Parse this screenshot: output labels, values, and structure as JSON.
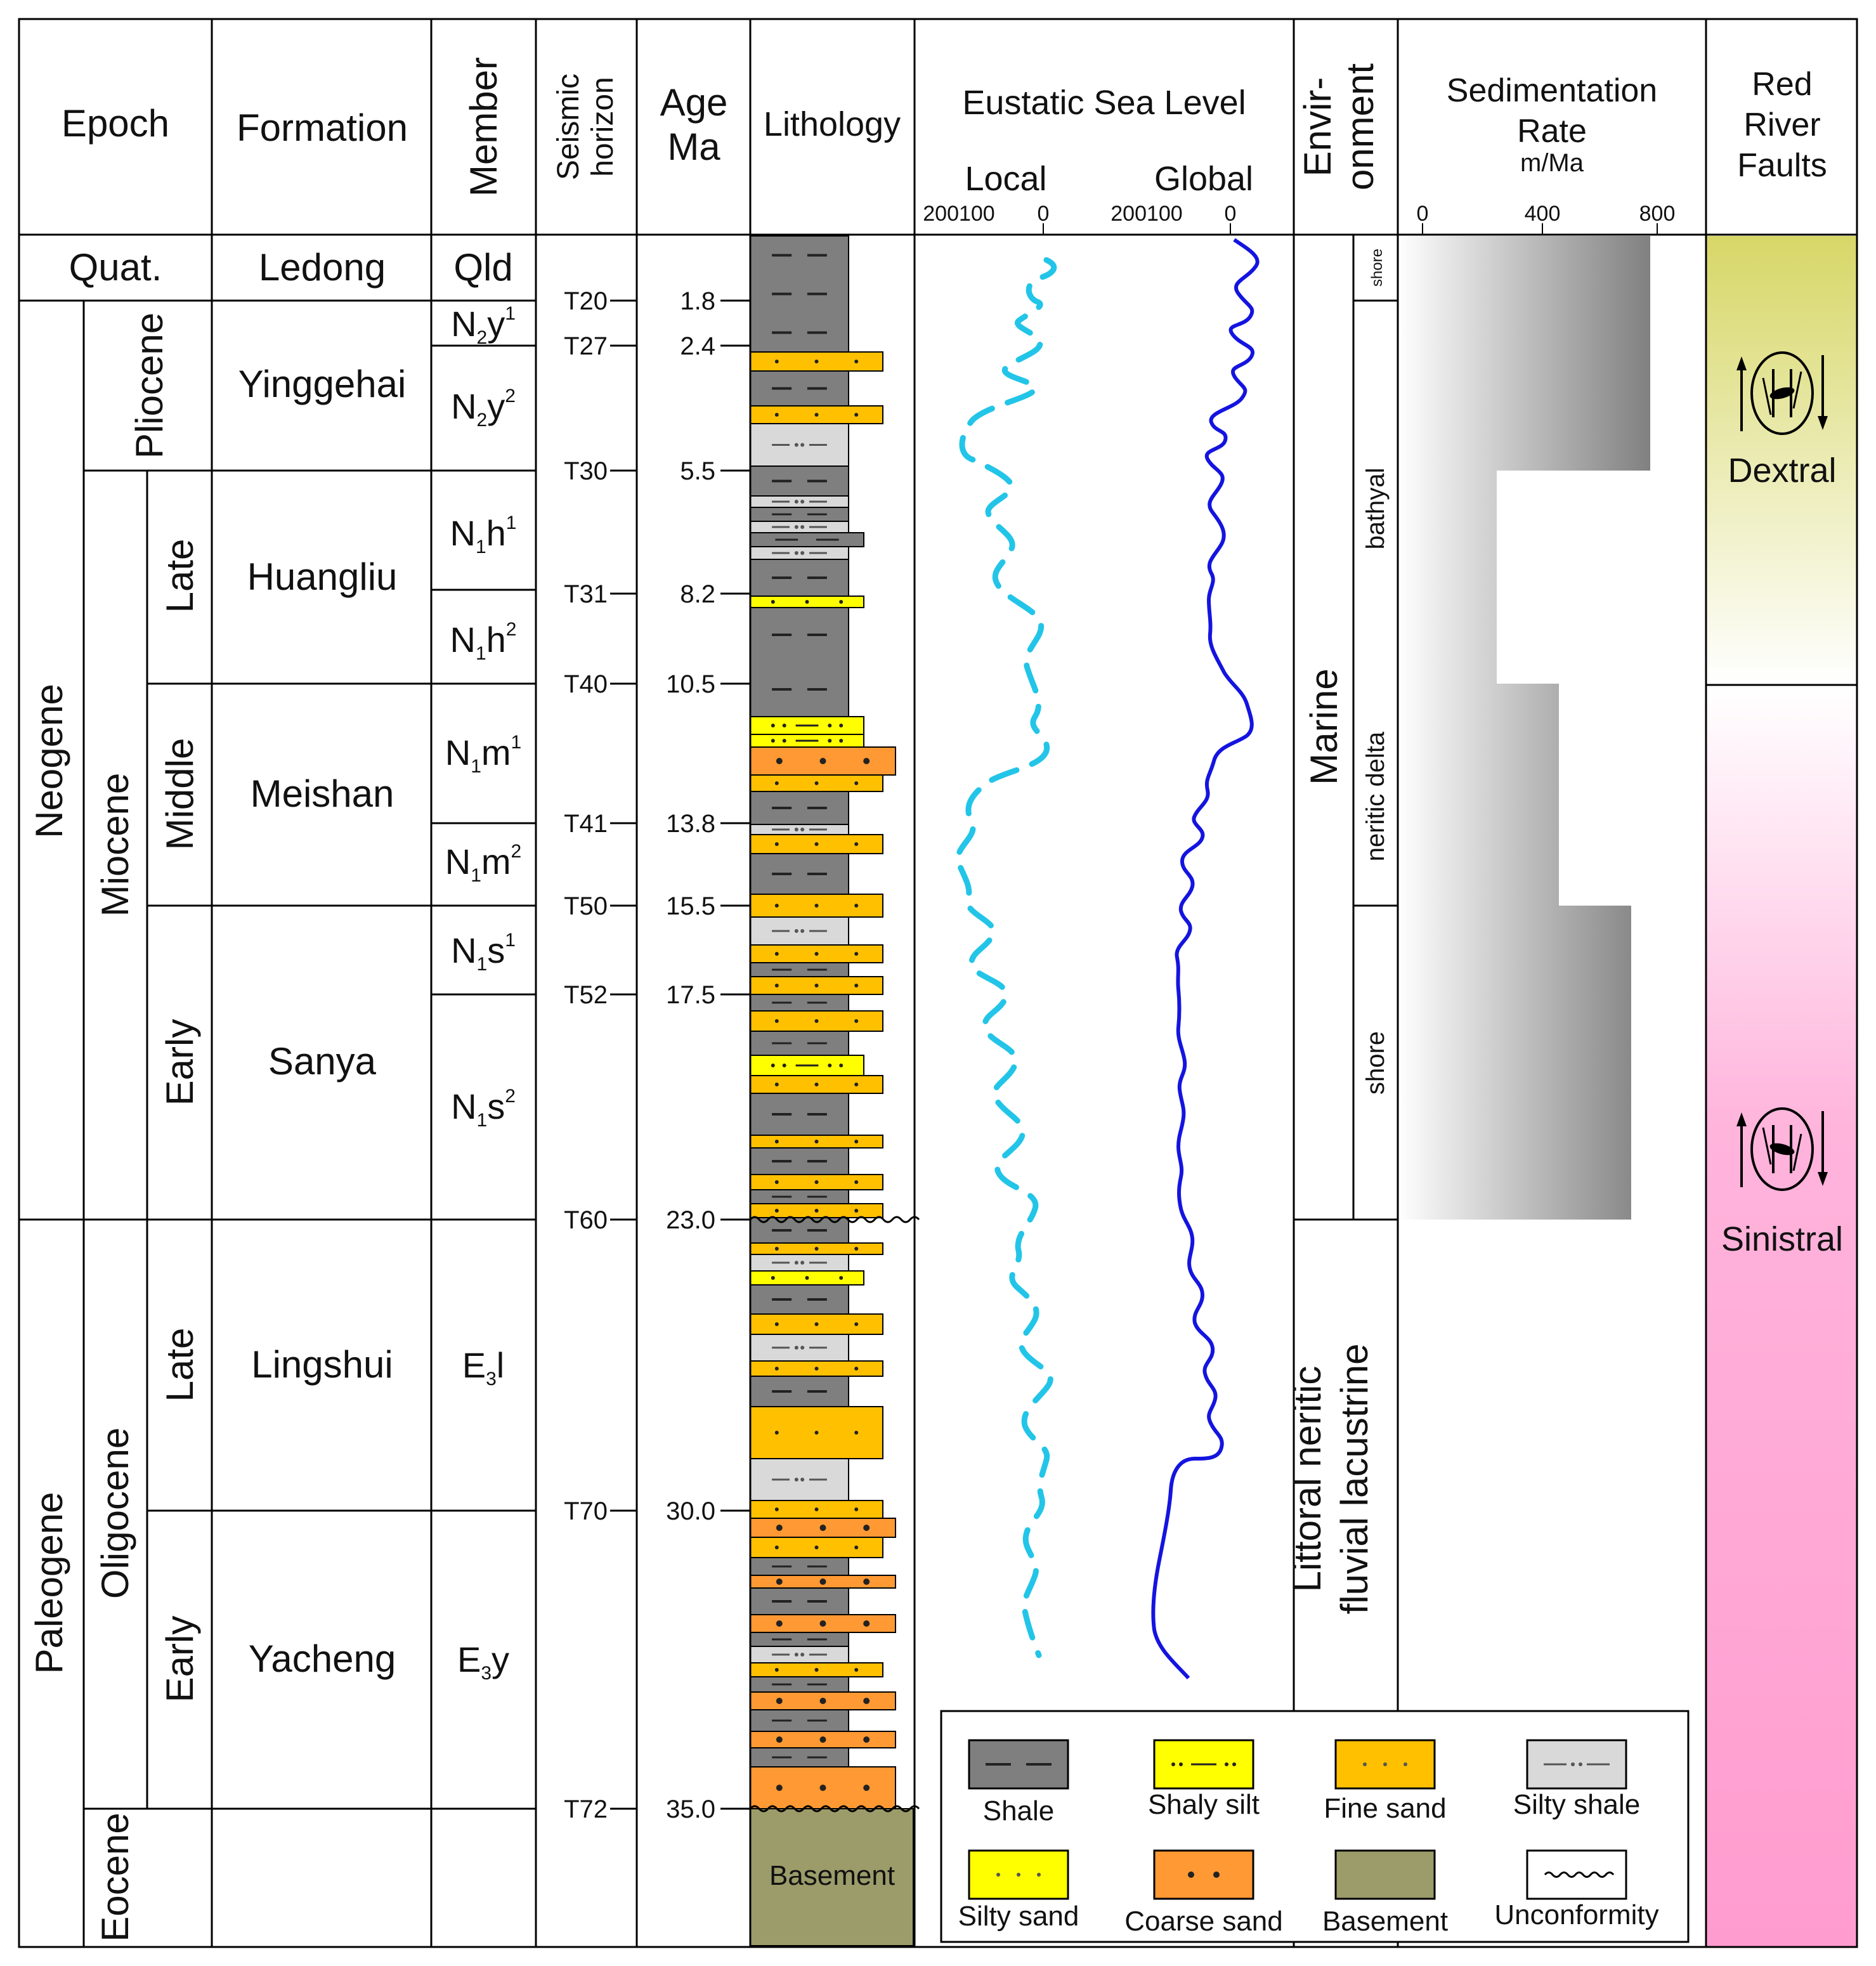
{
  "headers": {
    "epoch": "Epoch",
    "formation": "Formation",
    "member": "Member",
    "seismic": [
      "Seismic",
      "horizon"
    ],
    "age": [
      "Age",
      "Ma"
    ],
    "lithology": "Lithology",
    "sea_level": "Eustatic Sea Level",
    "local": "Local",
    "global": "Global",
    "sea_ticks": [
      "200100",
      "0"
    ],
    "environment": [
      "Envir-",
      "onment"
    ],
    "sed_rate": [
      "Sedimentation",
      "Rate",
      "m/Ma"
    ],
    "sed_ticks": [
      "0",
      "400",
      "800"
    ],
    "faults": [
      "Red",
      "River",
      "Faults"
    ]
  },
  "epochs": {
    "quat": "Quat.",
    "neogene": "Neogene",
    "paleogene": "Paleogene",
    "pliocene": "Pliocene",
    "miocene": "Miocene",
    "oligocene": "Oligocene",
    "eocene": "Eocene",
    "late": "Late",
    "middle": "Middle",
    "early": "Early"
  },
  "formations": {
    "ledong": "Ledong",
    "yinggehai": "Yinggehai",
    "huangliu": "Huangliu",
    "meishan": "Meishan",
    "sanya": "Sanya",
    "lingshui": "Lingshui",
    "yacheng": "Yacheng"
  },
  "members": {
    "qld": "Qld",
    "n2y1": [
      "N",
      "2",
      "y",
      "1"
    ],
    "n2y2": [
      "N",
      "2",
      "y",
      "2"
    ],
    "n1h1": [
      "N",
      "1",
      "h",
      "1"
    ],
    "n1h2": [
      "N",
      "1",
      "h",
      "2"
    ],
    "n1m1": [
      "N",
      "1",
      "m",
      "1"
    ],
    "n1m2": [
      "N",
      "1",
      "m",
      "2"
    ],
    "n1s1": [
      "N",
      "1",
      "s",
      "1"
    ],
    "n1s2": [
      "N",
      "1",
      "s",
      "2"
    ],
    "e3l": [
      "E",
      "3",
      "l"
    ],
    "e3y": [
      "E",
      "3",
      "y"
    ]
  },
  "horizons": [
    {
      "name": "T20",
      "age": "1.8"
    },
    {
      "name": "T27",
      "age": "2.4"
    },
    {
      "name": "T30",
      "age": "5.5"
    },
    {
      "name": "T31",
      "age": "8.2"
    },
    {
      "name": "T40",
      "age": "10.5"
    },
    {
      "name": "T41",
      "age": "13.8"
    },
    {
      "name": "T50",
      "age": "15.5"
    },
    {
      "name": "T52",
      "age": "17.5"
    },
    {
      "name": "T60",
      "age": "23.0"
    },
    {
      "name": "T70",
      "age": "30.0"
    },
    {
      "name": "T72",
      "age": "35.0"
    }
  ],
  "lithology": {
    "basement_label": "Basement"
  },
  "environment": {
    "marine": "Marine",
    "littoral": [
      "Littoral neritic",
      "fluvial lacustrine"
    ],
    "shore_top": "shore",
    "bathyal": "bathyal",
    "neritic_delta": "neritic delta",
    "shore": "shore"
  },
  "faults": {
    "dextral": "Dextral",
    "sinistral": "Sinistral"
  },
  "legend": {
    "shale": "Shale",
    "shaly_silt": "Shaly silt",
    "fine_sand": "Fine sand",
    "silty_shale": "Silty shale",
    "silty_sand": "Silty sand",
    "coarse_sand": "Coarse sand",
    "basement": "Basement",
    "unconformity": "Unconformity"
  },
  "colors": {
    "shale": "#7f7f7f",
    "shaly_silt": "#ffff00",
    "fine_sand": "#ffc000",
    "silty_shale": "#d9d9d9",
    "silty_sand": "#ffff00",
    "coarse_sand": "#ff9933",
    "basement": "#9c9c6a",
    "local_curve": "#22c5e8",
    "global_curve": "#1010e0",
    "dextral_band": "#d8d86a",
    "sinistral_band": "#ff9fd0"
  }
}
